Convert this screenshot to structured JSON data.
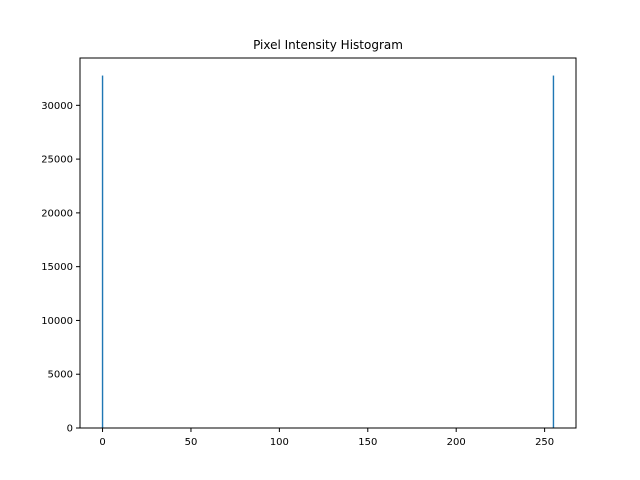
{
  "chart_data": {
    "type": "bar",
    "title": "Pixel Intensity Histogram",
    "xlabel": "",
    "ylabel": "",
    "xlim": [
      -12.75,
      267.75
    ],
    "ylim": [
      0,
      34400
    ],
    "x_ticks": [
      0,
      50,
      100,
      150,
      200,
      250
    ],
    "y_ticks": [
      0,
      5000,
      10000,
      15000,
      20000,
      25000,
      30000
    ],
    "bar_color": "#1f77b4",
    "grid": false,
    "series": [
      {
        "x": [
          0,
          255
        ],
        "values": [
          32768,
          32768
        ]
      }
    ]
  }
}
